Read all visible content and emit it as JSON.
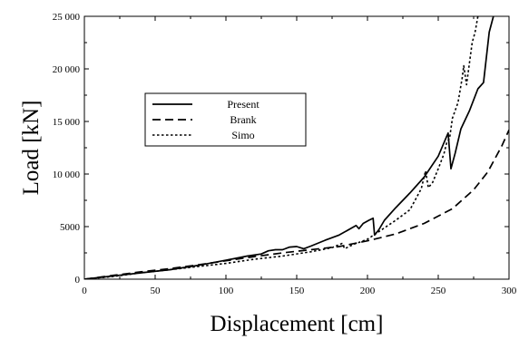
{
  "chart_data": {
    "type": "line",
    "xlabel": "Displacement [cm]",
    "ylabel": "Load [kN]",
    "xlim": [
      0,
      300
    ],
    "ylim": [
      0,
      25000
    ],
    "x_ticks": [
      0,
      50,
      100,
      150,
      200,
      250,
      300
    ],
    "x_tick_labels": [
      "0",
      "50",
      "100",
      "150",
      "200",
      "250",
      "300"
    ],
    "y_ticks": [
      0,
      5000,
      10000,
      15000,
      20000,
      25000
    ],
    "y_tick_labels": [
      "0",
      "5000",
      "10 000",
      "15 000",
      "20 000",
      "25 000"
    ],
    "grid": false,
    "legend_position": "upper-left-center",
    "series": [
      {
        "name": "Present",
        "style": "solid",
        "points": [
          [
            0,
            0
          ],
          [
            20,
            300
          ],
          [
            40,
            600
          ],
          [
            60,
            900
          ],
          [
            80,
            1300
          ],
          [
            100,
            1800
          ],
          [
            115,
            2200
          ],
          [
            125,
            2400
          ],
          [
            130,
            2700
          ],
          [
            135,
            2800
          ],
          [
            140,
            2800
          ],
          [
            145,
            3050
          ],
          [
            150,
            3100
          ],
          [
            155,
            2900
          ],
          [
            160,
            3150
          ],
          [
            170,
            3700
          ],
          [
            180,
            4200
          ],
          [
            188,
            4800
          ],
          [
            192,
            5100
          ],
          [
            194,
            4800
          ],
          [
            197,
            5300
          ],
          [
            201,
            5600
          ],
          [
            204,
            5800
          ],
          [
            205,
            4200
          ],
          [
            208,
            4700
          ],
          [
            212,
            5600
          ],
          [
            220,
            6800
          ],
          [
            230,
            8200
          ],
          [
            240,
            9700
          ],
          [
            250,
            11700
          ],
          [
            256,
            13600
          ],
          [
            257,
            13900
          ],
          [
            259,
            10500
          ],
          [
            262,
            12000
          ],
          [
            266,
            14300
          ],
          [
            272,
            16000
          ],
          [
            278,
            18100
          ],
          [
            282,
            18700
          ],
          [
            286,
            23500
          ],
          [
            289,
            25000
          ]
        ]
      },
      {
        "name": "Brank",
        "style": "dashed",
        "points": [
          [
            0,
            0
          ],
          [
            20,
            350
          ],
          [
            40,
            700
          ],
          [
            60,
            1000
          ],
          [
            80,
            1350
          ],
          [
            100,
            1750
          ],
          [
            120,
            2150
          ],
          [
            140,
            2500
          ],
          [
            160,
            2800
          ],
          [
            180,
            3100
          ],
          [
            200,
            3650
          ],
          [
            220,
            4300
          ],
          [
            240,
            5300
          ],
          [
            260,
            6700
          ],
          [
            275,
            8500
          ],
          [
            285,
            10200
          ],
          [
            295,
            12700
          ],
          [
            300,
            14200
          ]
        ]
      },
      {
        "name": "Simo",
        "style": "dotted",
        "points": [
          [
            0,
            0
          ],
          [
            20,
            250
          ],
          [
            40,
            600
          ],
          [
            60,
            900
          ],
          [
            80,
            1200
          ],
          [
            100,
            1500
          ],
          [
            120,
            1900
          ],
          [
            140,
            2200
          ],
          [
            160,
            2600
          ],
          [
            175,
            3000
          ],
          [
            182,
            3400
          ],
          [
            184,
            2900
          ],
          [
            190,
            3300
          ],
          [
            200,
            3800
          ],
          [
            210,
            4700
          ],
          [
            220,
            5600
          ],
          [
            230,
            6600
          ],
          [
            238,
            8600
          ],
          [
            241,
            10300
          ],
          [
            243,
            8700
          ],
          [
            246,
            9200
          ],
          [
            250,
            10500
          ],
          [
            254,
            11900
          ],
          [
            256,
            13000
          ],
          [
            258,
            13400
          ],
          [
            260,
            15300
          ],
          [
            264,
            16800
          ],
          [
            267,
            19200
          ],
          [
            268,
            20300
          ],
          [
            270,
            18500
          ],
          [
            272,
            20500
          ],
          [
            274,
            22500
          ],
          [
            276,
            23500
          ],
          [
            278,
            25000
          ]
        ]
      }
    ]
  }
}
